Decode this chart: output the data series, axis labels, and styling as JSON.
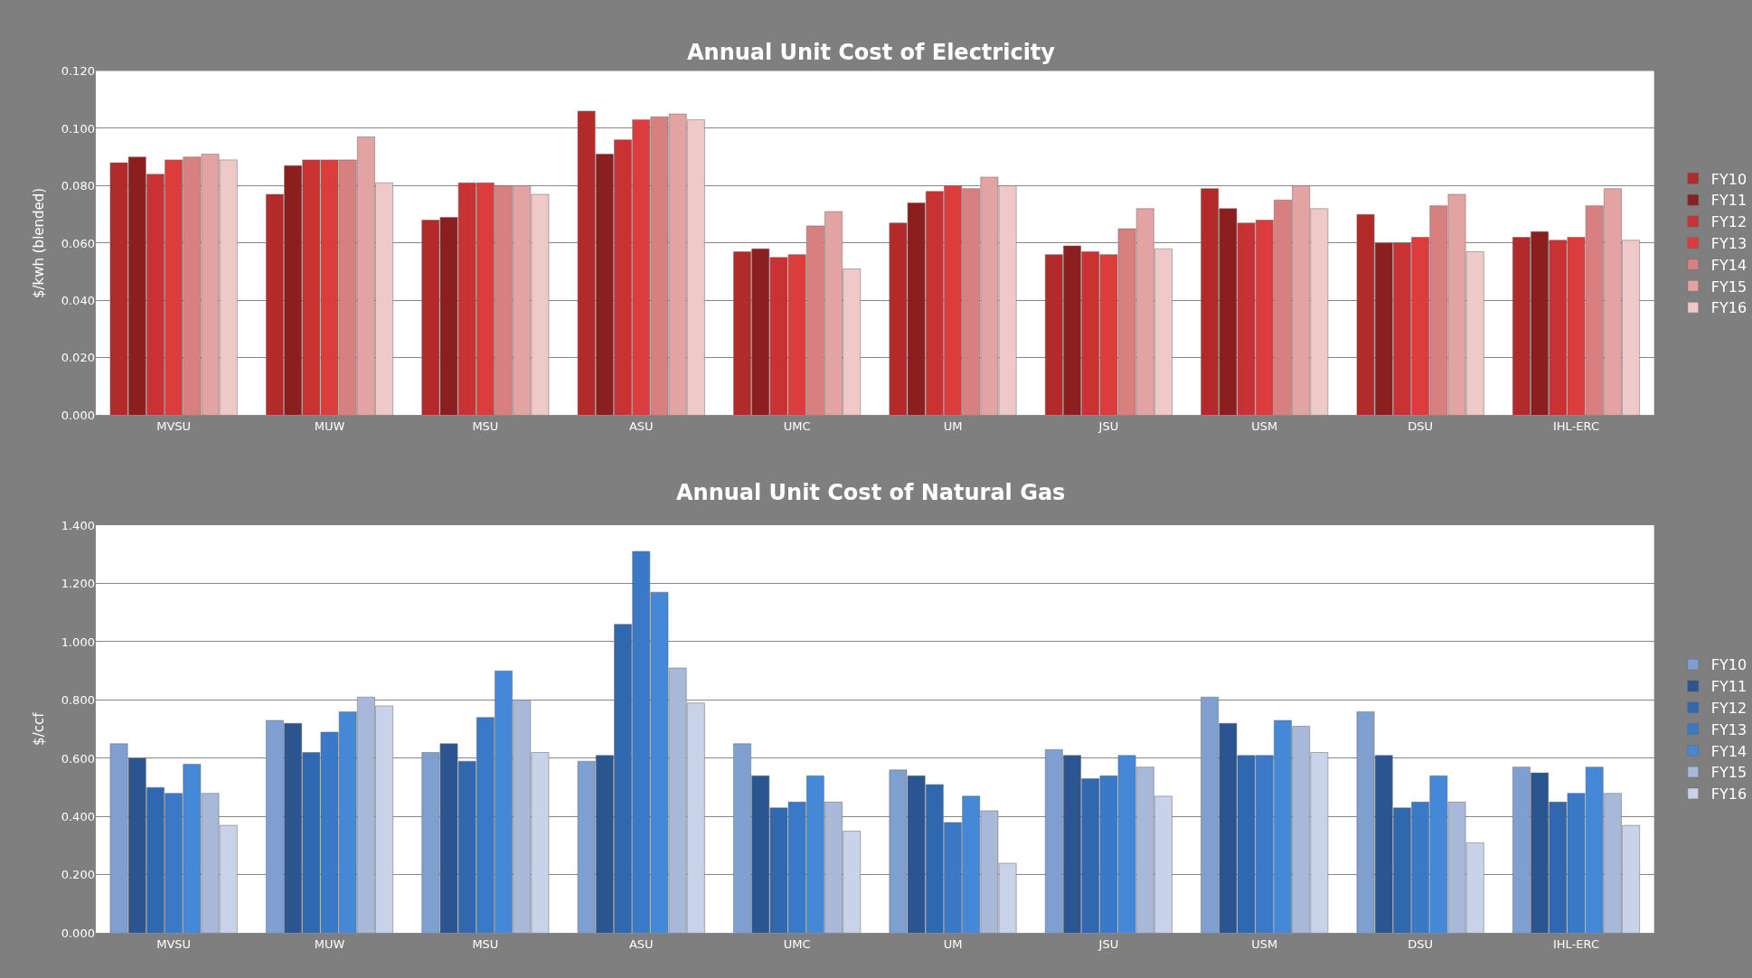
{
  "chart_data": [
    {
      "type": "bar",
      "title": "Annual Unit Cost of Electricity",
      "ylabel": "$/kwh (blended)",
      "categories": [
        "MVSU",
        "MUW",
        "MSU",
        "ASU",
        "UMC",
        "UM",
        "JSU",
        "USM",
        "DSU",
        "IHL-ERC"
      ],
      "series": [
        {
          "name": "FY10",
          "color": "#b22a2a",
          "values": [
            0.088,
            0.077,
            0.068,
            0.106,
            0.057,
            0.067,
            0.056,
            0.079,
            0.07,
            0.062
          ]
        },
        {
          "name": "FY11",
          "color": "#8b1e1e",
          "values": [
            0.09,
            0.087,
            0.069,
            0.091,
            0.058,
            0.074,
            0.059,
            0.072,
            0.06,
            0.064
          ]
        },
        {
          "name": "FY12",
          "color": "#c83232",
          "values": [
            0.084,
            0.089,
            0.081,
            0.096,
            0.055,
            0.078,
            0.057,
            0.067,
            0.06,
            0.061
          ]
        },
        {
          "name": "FY13",
          "color": "#dc3c3c",
          "values": [
            0.089,
            0.089,
            0.081,
            0.103,
            0.056,
            0.08,
            0.056,
            0.068,
            0.062,
            0.062
          ]
        },
        {
          "name": "FY14",
          "color": "#d88080",
          "values": [
            0.09,
            0.089,
            0.08,
            0.104,
            0.066,
            0.079,
            0.065,
            0.075,
            0.073,
            0.073
          ]
        },
        {
          "name": "FY15",
          "color": "#e3a3a3",
          "values": [
            0.091,
            0.097,
            0.08,
            0.105,
            0.071,
            0.083,
            0.072,
            0.08,
            0.077,
            0.079
          ]
        },
        {
          "name": "FY16",
          "color": "#efc8c8",
          "values": [
            0.089,
            0.081,
            0.077,
            0.103,
            0.051,
            0.08,
            0.058,
            0.072,
            0.057,
            0.061
          ]
        }
      ],
      "ylim": [
        0,
        0.12
      ],
      "yticks": [
        {
          "value": 0,
          "label": "0.000"
        },
        {
          "value": 0.02,
          "label": "0.020"
        },
        {
          "value": 0.04,
          "label": "0.040"
        },
        {
          "value": 0.06,
          "label": "0.060"
        },
        {
          "value": 0.08,
          "label": "0.080"
        },
        {
          "value": 0.1,
          "label": "0.100"
        },
        {
          "value": 0.12,
          "label": "0.120"
        }
      ],
      "grid": "y",
      "legend": "right"
    },
    {
      "type": "bar",
      "title": "Annual Unit Cost of Natural Gas",
      "ylabel": "$/ccf",
      "categories": [
        "MVSU",
        "MUW",
        "MSU",
        "ASU",
        "UMC",
        "UM",
        "JSU",
        "USM",
        "DSU",
        "IHL-ERC"
      ],
      "series": [
        {
          "name": "FY10",
          "color": "#7f9fd0",
          "values": [
            0.65,
            0.73,
            0.62,
            0.59,
            0.65,
            0.56,
            0.63,
            0.81,
            0.76,
            0.57
          ]
        },
        {
          "name": "FY11",
          "color": "#2a5590",
          "values": [
            0.6,
            0.72,
            0.65,
            0.61,
            0.54,
            0.54,
            0.61,
            0.72,
            0.61,
            0.55
          ]
        },
        {
          "name": "FY12",
          "color": "#3068b0",
          "values": [
            0.5,
            0.62,
            0.59,
            1.06,
            0.43,
            0.51,
            0.53,
            0.61,
            0.43,
            0.45
          ]
        },
        {
          "name": "FY13",
          "color": "#3a78c8",
          "values": [
            0.48,
            0.69,
            0.74,
            1.31,
            0.45,
            0.38,
            0.54,
            0.61,
            0.45,
            0.48
          ]
        },
        {
          "name": "FY14",
          "color": "#4588d8",
          "values": [
            0.58,
            0.76,
            0.9,
            1.17,
            0.54,
            0.47,
            0.61,
            0.73,
            0.54,
            0.57
          ]
        },
        {
          "name": "FY15",
          "color": "#a8b8d8",
          "values": [
            0.48,
            0.81,
            0.8,
            0.91,
            0.45,
            0.42,
            0.57,
            0.71,
            0.45,
            0.48
          ]
        },
        {
          "name": "FY16",
          "color": "#c8d2e8",
          "values": [
            0.37,
            0.78,
            0.62,
            0.79,
            0.35,
            0.24,
            0.47,
            0.62,
            0.31,
            0.37
          ]
        }
      ],
      "ylim": [
        0,
        1.4
      ],
      "yticks": [
        {
          "value": 0,
          "label": "0.000"
        },
        {
          "value": 0.2,
          "label": "0.200"
        },
        {
          "value": 0.4,
          "label": "0.400"
        },
        {
          "value": 0.6,
          "label": "0.600"
        },
        {
          "value": 0.8,
          "label": "0.800"
        },
        {
          "value": 1.0,
          "label": "1.000"
        },
        {
          "value": 1.2,
          "label": "1.200"
        },
        {
          "value": 1.4,
          "label": "1.400"
        }
      ],
      "grid": "y",
      "legend": "right"
    }
  ]
}
